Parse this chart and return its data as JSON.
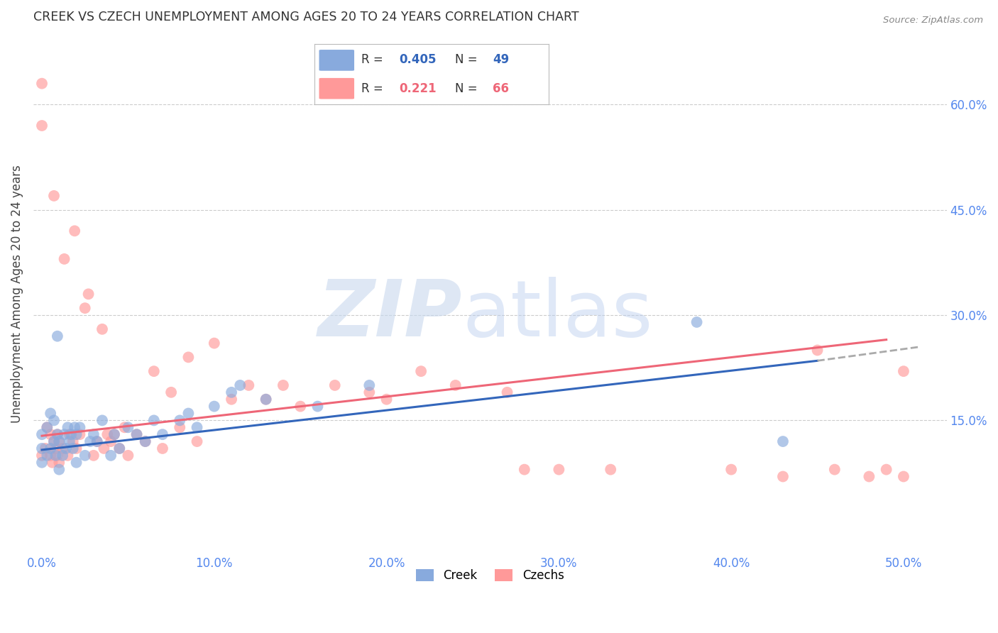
{
  "title": "CREEK VS CZECH UNEMPLOYMENT AMONG AGES 20 TO 24 YEARS CORRELATION CHART",
  "source": "Source: ZipAtlas.com",
  "xlabel_ticks": [
    "0.0%",
    "10.0%",
    "20.0%",
    "30.0%",
    "40.0%",
    "50.0%"
  ],
  "xlabel_vals": [
    0.0,
    0.1,
    0.2,
    0.3,
    0.4,
    0.5
  ],
  "ylabel_ticks": [
    "15.0%",
    "30.0%",
    "45.0%",
    "60.0%"
  ],
  "ylabel_vals": [
    0.15,
    0.3,
    0.45,
    0.6
  ],
  "ylabel_label": "Unemployment Among Ages 20 to 24 years",
  "xlim": [
    -0.005,
    0.525
  ],
  "ylim": [
    -0.04,
    0.7
  ],
  "legend_creek": "Creek",
  "legend_czechs": "Czechs",
  "creek_R": 0.405,
  "creek_N": 49,
  "czechs_R": 0.221,
  "czechs_N": 66,
  "creek_color": "#88AADD",
  "czechs_color": "#FF9999",
  "creek_line_color": "#3366BB",
  "czechs_line_color": "#EE6677",
  "creek_line_x0": 0.0,
  "creek_line_y0": 0.108,
  "creek_line_x1": 0.45,
  "creek_line_y1": 0.235,
  "creek_line_ext_x1": 0.51,
  "creek_line_ext_y1": 0.255,
  "czechs_line_x0": 0.0,
  "czechs_line_y0": 0.128,
  "czechs_line_x1": 0.49,
  "czechs_line_y1": 0.265,
  "creek_x": [
    0.0,
    0.0,
    0.0,
    0.003,
    0.003,
    0.005,
    0.005,
    0.007,
    0.007,
    0.008,
    0.009,
    0.009,
    0.01,
    0.01,
    0.012,
    0.013,
    0.014,
    0.015,
    0.016,
    0.017,
    0.018,
    0.019,
    0.02,
    0.02,
    0.022,
    0.025,
    0.028,
    0.03,
    0.032,
    0.035,
    0.04,
    0.042,
    0.045,
    0.05,
    0.055,
    0.06,
    0.065,
    0.07,
    0.08,
    0.085,
    0.09,
    0.1,
    0.11,
    0.115,
    0.13,
    0.16,
    0.19,
    0.38,
    0.43
  ],
  "creek_y": [
    0.09,
    0.11,
    0.13,
    0.1,
    0.14,
    0.11,
    0.16,
    0.12,
    0.15,
    0.1,
    0.13,
    0.27,
    0.08,
    0.12,
    0.1,
    0.13,
    0.11,
    0.14,
    0.12,
    0.13,
    0.11,
    0.14,
    0.09,
    0.13,
    0.14,
    0.1,
    0.12,
    0.13,
    0.12,
    0.15,
    0.1,
    0.13,
    0.11,
    0.14,
    0.13,
    0.12,
    0.15,
    0.13,
    0.15,
    0.16,
    0.14,
    0.17,
    0.19,
    0.2,
    0.18,
    0.17,
    0.2,
    0.29,
    0.12
  ],
  "czechs_x": [
    0.0,
    0.0,
    0.0,
    0.002,
    0.003,
    0.005,
    0.005,
    0.006,
    0.007,
    0.007,
    0.008,
    0.009,
    0.009,
    0.01,
    0.01,
    0.012,
    0.013,
    0.015,
    0.016,
    0.018,
    0.019,
    0.02,
    0.022,
    0.025,
    0.027,
    0.03,
    0.032,
    0.035,
    0.036,
    0.038,
    0.04,
    0.042,
    0.045,
    0.048,
    0.05,
    0.055,
    0.06,
    0.065,
    0.07,
    0.075,
    0.08,
    0.085,
    0.09,
    0.1,
    0.11,
    0.12,
    0.13,
    0.14,
    0.15,
    0.17,
    0.19,
    0.2,
    0.22,
    0.24,
    0.27,
    0.28,
    0.3,
    0.33,
    0.4,
    0.43,
    0.45,
    0.46,
    0.48,
    0.49,
    0.5,
    0.5
  ],
  "czechs_y": [
    0.1,
    0.57,
    0.63,
    0.11,
    0.14,
    0.1,
    0.13,
    0.09,
    0.12,
    0.47,
    0.11,
    0.1,
    0.13,
    0.09,
    0.12,
    0.11,
    0.38,
    0.1,
    0.13,
    0.12,
    0.42,
    0.11,
    0.13,
    0.31,
    0.33,
    0.1,
    0.12,
    0.28,
    0.11,
    0.13,
    0.12,
    0.13,
    0.11,
    0.14,
    0.1,
    0.13,
    0.12,
    0.22,
    0.11,
    0.19,
    0.14,
    0.24,
    0.12,
    0.26,
    0.18,
    0.2,
    0.18,
    0.2,
    0.17,
    0.2,
    0.19,
    0.18,
    0.22,
    0.2,
    0.19,
    0.08,
    0.08,
    0.08,
    0.08,
    0.07,
    0.25,
    0.08,
    0.07,
    0.08,
    0.22,
    0.07
  ]
}
